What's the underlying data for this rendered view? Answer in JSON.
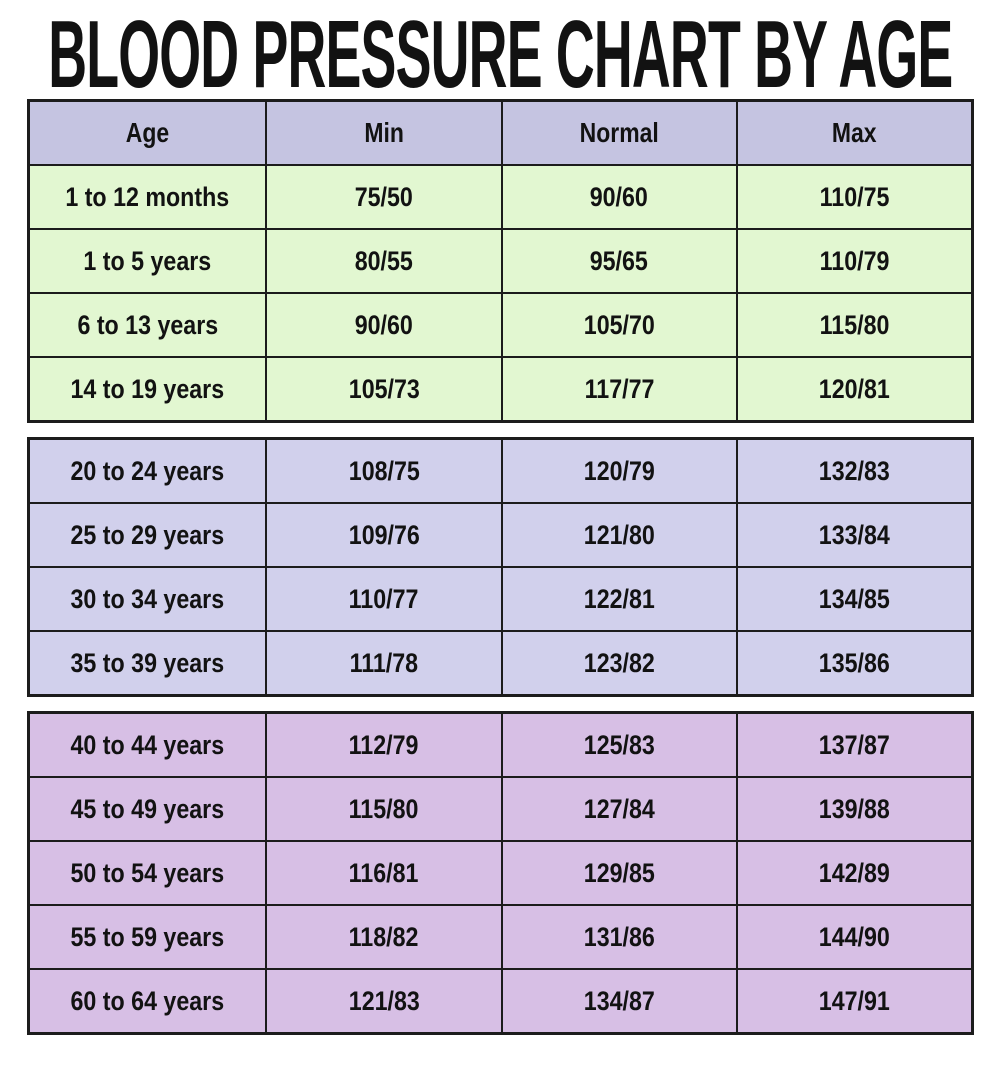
{
  "title": "BLOOD PRESSURE CHART BY AGE",
  "colors": {
    "header_bg": "#c5c4e1",
    "green_bg": "#e2f7d1",
    "lavender_bg": "#d1d0ec",
    "purple_bg": "#d7bfe5",
    "border": "#1c1c1c",
    "text": "#121212",
    "page_bg": "#ffffff"
  },
  "chart_data": {
    "type": "table",
    "title": "BLOOD PRESSURE CHART BY AGE",
    "columns": [
      "Age",
      "Min",
      "Normal",
      "Max"
    ],
    "rows": [
      [
        "1 to 12 months",
        "75/50",
        "90/60",
        "110/75"
      ],
      [
        "1 to 5 years",
        "80/55",
        "95/65",
        "110/79"
      ],
      [
        "6 to 13 years",
        "90/60",
        "105/70",
        "115/80"
      ],
      [
        "14 to 19 years",
        "105/73",
        "117/77",
        "120/81"
      ],
      [
        "20 to 24 years",
        "108/75",
        "120/79",
        "132/83"
      ],
      [
        "25 to 29 years",
        "109/76",
        "121/80",
        "133/84"
      ],
      [
        "30 to 34 years",
        "110/77",
        "122/81",
        "134/85"
      ],
      [
        "35 to 39 years",
        "111/78",
        "123/82",
        "135/86"
      ],
      [
        "40 to 44 years",
        "112/79",
        "125/83",
        "137/87"
      ],
      [
        "45 to 49 years",
        "115/80",
        "127/84",
        "139/88"
      ],
      [
        "50 to 54 years",
        "116/81",
        "129/85",
        "142/89"
      ],
      [
        "55 to 59 years",
        "118/82",
        "131/86",
        "144/90"
      ],
      [
        "60 to 64 years",
        "121/83",
        "134/87",
        "147/91"
      ]
    ],
    "groups": [
      {
        "label": "children-teens",
        "row_indices": [
          0,
          1,
          2,
          3
        ],
        "background": "#e2f7d1"
      },
      {
        "label": "adults-20-39",
        "row_indices": [
          4,
          5,
          6,
          7
        ],
        "background": "#d1d0ec"
      },
      {
        "label": "adults-40-64",
        "row_indices": [
          8,
          9,
          10,
          11,
          12
        ],
        "background": "#d7bfe5"
      }
    ],
    "layout": {
      "header_background": "#c5c4e1",
      "grid": true,
      "section_gaps": true
    }
  }
}
